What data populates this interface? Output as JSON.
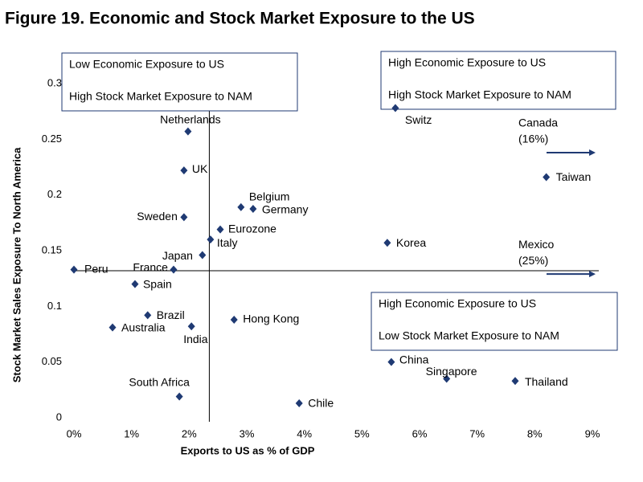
{
  "chart_data": {
    "type": "scatter",
    "title": "Figure 19. Economic and Stock Market Exposure to the US",
    "x_label": "Exports to US as % of GDP",
    "y_label": "Stock Market Sales Exposure To North America",
    "color": "#1f3a73",
    "xlim": [
      0,
      9
    ],
    "ylim": [
      0,
      0.3
    ],
    "xticks": [
      {
        "value": 0,
        "label": "0%"
      },
      {
        "value": 1,
        "label": "1%"
      },
      {
        "value": 2,
        "label": "2%"
      },
      {
        "value": 3,
        "label": "3%"
      },
      {
        "value": 4,
        "label": "4%"
      },
      {
        "value": 5,
        "label": "5%"
      },
      {
        "value": 6,
        "label": "6%"
      },
      {
        "value": 7,
        "label": "7%"
      },
      {
        "value": 8,
        "label": "8%"
      },
      {
        "value": 9,
        "label": "9%"
      }
    ],
    "yticks": [
      0,
      0.05,
      0.1,
      0.15,
      0.2,
      0.25,
      0.3
    ],
    "x_reference": 2.35,
    "y_reference": 0.132,
    "labels": [
      "Peru",
      "Netherlands",
      "UK",
      "Sweden",
      "Belgium",
      "Germany",
      "Eurozone",
      "Italy",
      "Japan",
      "France",
      "Spain",
      "Brazil",
      "Australia",
      "India",
      "Hong Kong",
      "South Africa",
      "Chile",
      "China",
      "Singapore",
      "Thailand",
      "Korea",
      "Switz",
      "Taiwan"
    ],
    "x": [
      0.0,
      1.98,
      1.91,
      1.91,
      2.9,
      3.11,
      2.54,
      2.37,
      2.23,
      1.73,
      1.06,
      1.28,
      0.67,
      2.04,
      2.78,
      1.83,
      3.91,
      5.51,
      6.47,
      7.66,
      5.44,
      5.58,
      8.2
    ],
    "y": [
      0.133,
      0.257,
      0.222,
      0.18,
      0.189,
      0.1875,
      0.169,
      0.16,
      0.146,
      0.133,
      0.12,
      0.092,
      0.081,
      0.082,
      0.088,
      0.019,
      0.013,
      0.05,
      0.035,
      0.033,
      0.157,
      0.278,
      0.216
    ],
    "offscale": [
      {
        "name": "Canada",
        "x": 16,
        "x_label": "(16%)",
        "y": 0.238
      },
      {
        "name": "Mexico",
        "x": 25,
        "x_label": "(25%)",
        "y": 0.129
      }
    ],
    "quadrant_labels": [
      [
        "Low Economic Exposure to US",
        "High Stock Market Exposure to NAM"
      ],
      [
        "High Economic Exposure to US",
        "High Stock Market Exposure to NAM"
      ],
      [
        "High Economic Exposure to US",
        "Low Stock Market Exposure to NAM"
      ]
    ]
  }
}
